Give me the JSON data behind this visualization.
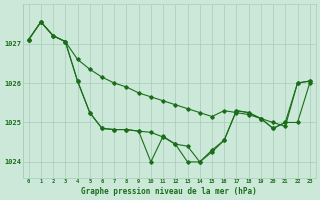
{
  "title": "Graphe pression niveau de la mer (hPa)",
  "background_color": "#cce8d8",
  "grid_color": "#aaccba",
  "line_color": "#1a6e1a",
  "xlim": [
    -0.5,
    23.5
  ],
  "ylim": [
    1023.6,
    1028.0
  ],
  "yticks": [
    1024,
    1025,
    1026,
    1027
  ],
  "xticks": [
    0,
    1,
    2,
    3,
    4,
    5,
    6,
    7,
    8,
    9,
    10,
    11,
    12,
    13,
    14,
    15,
    16,
    17,
    18,
    19,
    20,
    21,
    22,
    23
  ],
  "s1": [
    1027.1,
    1027.55,
    1027.2,
    1027.05,
    1026.6,
    1026.35,
    1026.15,
    1026.0,
    1025.9,
    1025.75,
    1025.65,
    1025.55,
    1025.45,
    1025.35,
    1025.25,
    1025.15,
    1025.3,
    1025.25,
    1025.2,
    1025.1,
    1025.0,
    1024.9,
    1026.0,
    1026.05
  ],
  "s2": [
    1027.1,
    1027.55,
    1027.2,
    1027.05,
    1026.05,
    1025.25,
    1024.85,
    1024.82,
    1024.82,
    1024.78,
    1024.0,
    1024.65,
    1024.45,
    1024.4,
    1024.0,
    1024.3,
    1024.55,
    1025.3,
    1025.25,
    1025.1,
    1024.85,
    1025.0,
    1026.0,
    1026.05
  ],
  "s3": [
    1027.1,
    1027.55,
    1027.2,
    1027.05,
    1026.05,
    1025.25,
    1024.85,
    1024.82,
    1024.82,
    1024.78,
    1024.75,
    1024.63,
    1024.45,
    1024.0,
    1024.0,
    1024.25,
    1024.55,
    1025.3,
    1025.25,
    1025.1,
    1024.85,
    1025.0,
    1025.0,
    1026.0
  ]
}
